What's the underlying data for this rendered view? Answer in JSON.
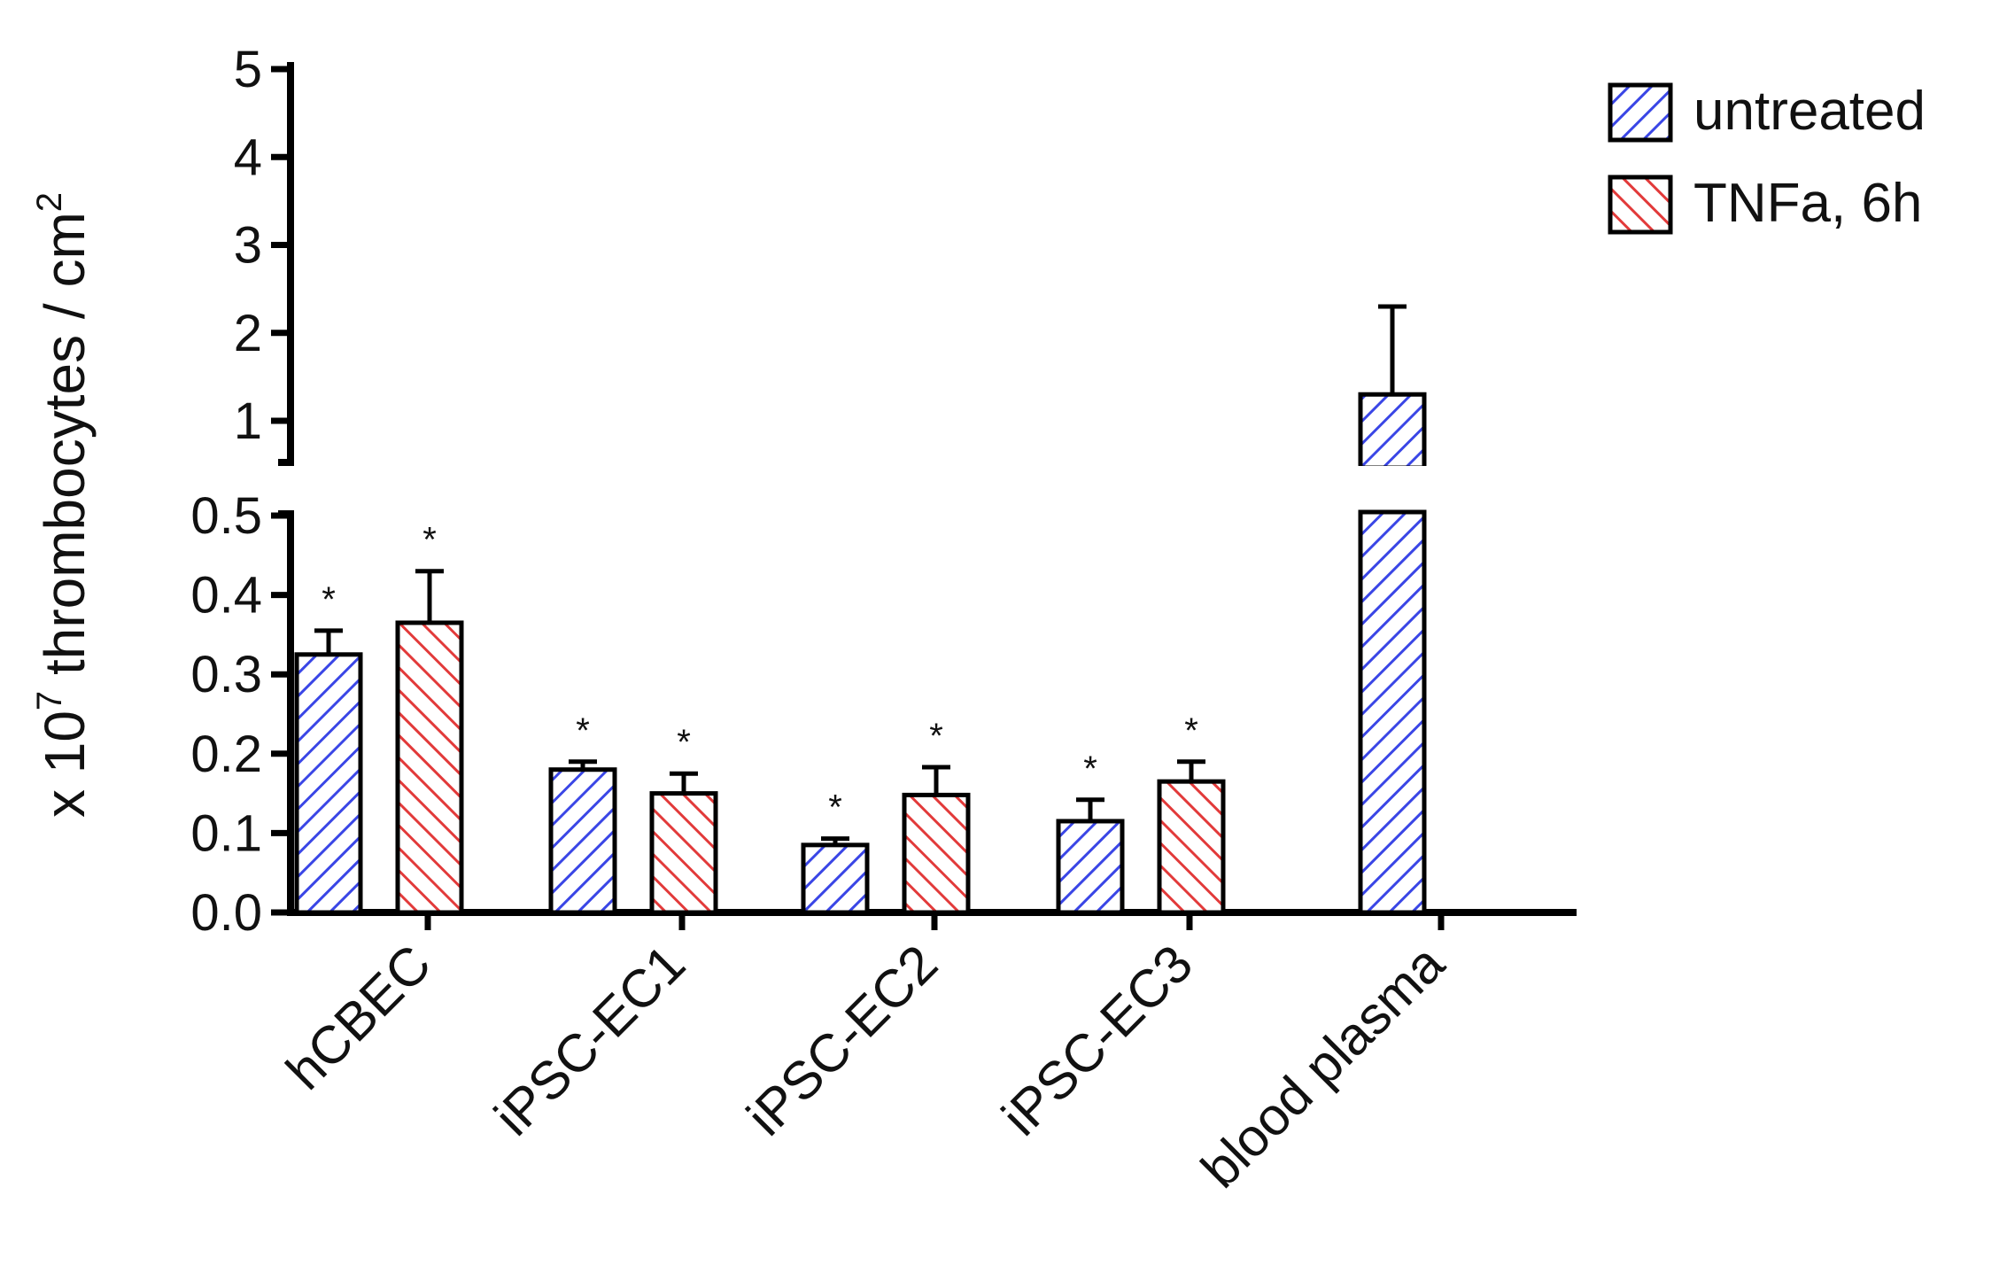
{
  "chart_data": {
    "type": "bar",
    "categories": [
      "hCBEC",
      "iPSC-EC1",
      "iPSC-EC2",
      "iPSC-EC3",
      "blood plasma"
    ],
    "series": [
      {
        "name": "untreated",
        "color": "#3a46e6",
        "pattern": "hatch-forward",
        "values": [
          0.325,
          0.18,
          0.085,
          0.115,
          1.3
        ],
        "errors": [
          0.03,
          0.01,
          0.008,
          0.027,
          1.0
        ],
        "significance": [
          "*",
          "*",
          "*",
          "*",
          null
        ]
      },
      {
        "name": "TNFa, 6h",
        "color": "#e23a3a",
        "pattern": "hatch-backward",
        "values": [
          0.365,
          0.15,
          0.148,
          0.165,
          null
        ],
        "errors": [
          0.065,
          0.025,
          0.035,
          0.025,
          null
        ],
        "significance": [
          "*",
          "*",
          "*",
          "*",
          null
        ]
      }
    ],
    "ylabel": {
      "prefix": "x 10",
      "exp": "7",
      "middle": " thrombocytes / cm",
      "unit_exp": "2"
    },
    "y_axis_break": true,
    "lower_segment": {
      "ylim": [
        0.0,
        0.5
      ],
      "ticks": [
        0.0,
        0.1,
        0.2,
        0.3,
        0.4,
        0.5
      ],
      "tick_labels": [
        "0.0",
        "0.1",
        "0.2",
        "0.3",
        "0.4",
        "0.5"
      ]
    },
    "upper_segment": {
      "ylim": [
        0.5,
        5
      ],
      "ticks": [
        1,
        2,
        3,
        4,
        5
      ],
      "tick_labels": [
        "1",
        "2",
        "3",
        "4",
        "5"
      ]
    },
    "legend_position": "top-right",
    "grid": false
  }
}
